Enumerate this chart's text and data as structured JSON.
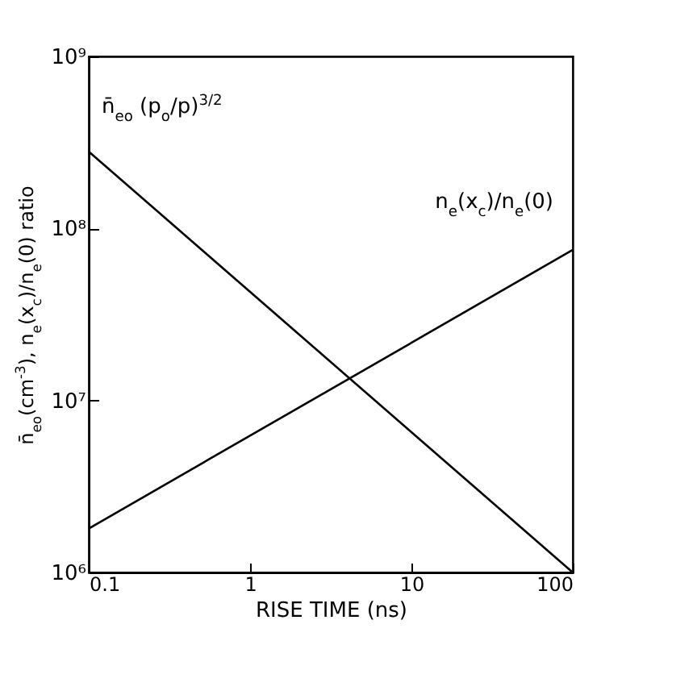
{
  "chart_data": {
    "type": "line",
    "xlabel": "RISE TIME (ns)",
    "ylabel": "n̄$_{eo}$(cm$^{-3}$), n$_{e}$(x$_{c}$)/n$_{e}$(0) ratio",
    "x": [
      0.1,
      100
    ],
    "series": [
      {
        "name": "n̄$_{eo}$ (p$_{o}$/p)$^{3/2}$",
        "color": "#000000",
        "values": [
          280000000,
          1000000
        ]
      },
      {
        "name": "n$_{e}$(x$_{c}$)/n$_{e}$(0)",
        "color": "#000000",
        "values": [
          1800000,
          75000000
        ]
      }
    ],
    "log": "xy",
    "xlim": [
      0.1,
      100
    ],
    "ylim": [
      1000000,
      1000000000
    ],
    "xticks": [
      0.1,
      1,
      10,
      100
    ],
    "yticks": [
      {
        "value": 1000000,
        "label": "10⁶"
      },
      {
        "value": 10000000,
        "label": "10⁷"
      },
      {
        "value": 100000000,
        "label": "10⁸"
      },
      {
        "value": 1000000000,
        "label": "10⁹"
      }
    ],
    "grid": false,
    "marker": "none",
    "line_style": "solid"
  }
}
